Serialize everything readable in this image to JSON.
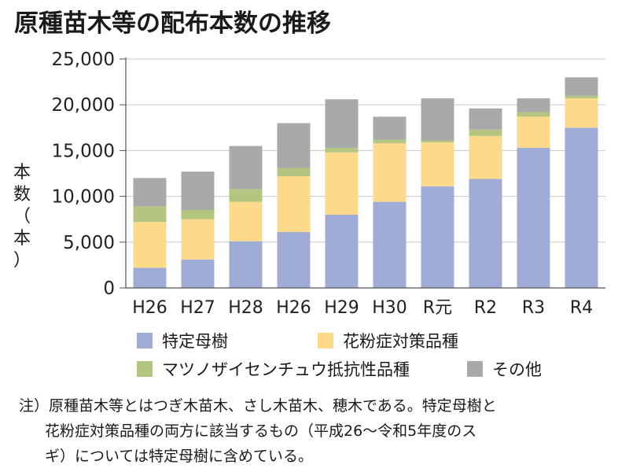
{
  "title": "原種苗木等の配布本数の推移",
  "colors": {
    "特定母樹": "#9facd6",
    "花粉症対策品種": "#fdd98c",
    "マツノザイセンチュウ抵抗性品種": "#b3c57e",
    "その他": "#a9a9a9",
    "axis": "#555555",
    "grid": "#c8c8c8"
  },
  "chart_data": {
    "type": "bar",
    "stacked": true,
    "title": "原種苗木等の配布本数の推移",
    "xlabel": "",
    "ylabel": "本数（本）",
    "ylim": [
      0,
      25000
    ],
    "yticks": [
      0,
      5000,
      10000,
      15000,
      20000,
      25000
    ],
    "ytick_labels": [
      "0",
      "5,000",
      "10,000",
      "15,000",
      "20,000",
      "25,000"
    ],
    "grid": true,
    "legend_position": "bottom",
    "categories": [
      "H26",
      "H27",
      "H28",
      "H26",
      "H29",
      "H30",
      "R元",
      "R2",
      "R3",
      "R4"
    ],
    "series": [
      {
        "name": "特定母樹",
        "color": "#9facd6",
        "values": [
          2200,
          3100,
          5100,
          6100,
          8000,
          9400,
          11100,
          11900,
          15300,
          17500
        ]
      },
      {
        "name": "花粉症対策品種",
        "color": "#fdd98c",
        "values": [
          5000,
          4400,
          4300,
          6100,
          6800,
          6400,
          4800,
          4700,
          3400,
          3200
        ]
      },
      {
        "name": "マツノザイセンチュウ抵抗性品種",
        "color": "#b3c57e",
        "values": [
          1700,
          1000,
          1400,
          900,
          500,
          400,
          200,
          700,
          500,
          300
        ]
      },
      {
        "name": "その他",
        "color": "#a9a9a9",
        "values": [
          3100,
          4200,
          4700,
          4900,
          5300,
          2500,
          4600,
          2300,
          1500,
          2000
        ]
      }
    ]
  },
  "ylabel_chars": [
    "本",
    "数",
    "（",
    "本",
    "）"
  ],
  "legend": [
    {
      "label": "特定母樹",
      "color": "#9facd6"
    },
    {
      "label": "花粉症対策品種",
      "color": "#fdd98c"
    },
    {
      "label": "マツノザイセンチュウ抵抗性品種",
      "color": "#b3c57e"
    },
    {
      "label": "その他",
      "color": "#a9a9a9"
    }
  ],
  "note": {
    "line1": "注）原種苗木等とはつぎ木苗木、さし木苗木、穂木である。特定母樹と",
    "line2": "花粉症対策品種の両方に該当するもの（平成26～令和5年度のス",
    "line3": "ギ）については特定母樹に含めている。"
  }
}
